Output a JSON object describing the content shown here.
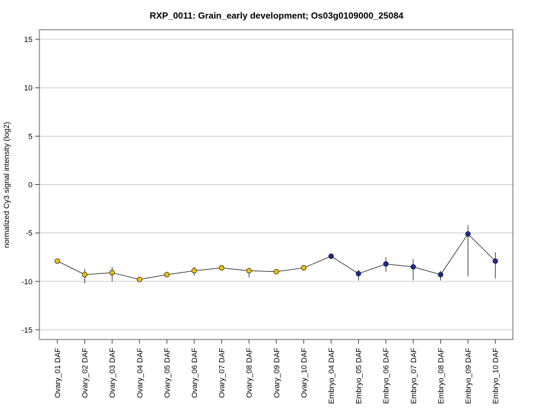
{
  "chart_data": {
    "type": "line",
    "title": "RXP_0011: Grain_early development; Os03g0109000_25084",
    "xlabel": "",
    "ylabel": "normalized Cy3 signal intensity (log2)",
    "ylim": [
      -16,
      16
    ],
    "yticks": [
      -15,
      -10,
      -5,
      0,
      5,
      10,
      15
    ],
    "grid": true,
    "categories": [
      "Ovary_01 DAF",
      "Ovary_02 DAF",
      "Ovary_03 DAF",
      "Ovary_04 DAF",
      "Ovary_05 DAF",
      "Ovary_06 DAF",
      "Ovary_07 DAF",
      "Ovary_08 DAF",
      "Ovary_09 DAF",
      "Ovary_10 DAF",
      "Embryo_04 DAF",
      "Embryo_05 DAF",
      "Embryo_06 DAF",
      "Embryo_07 DAF",
      "Embryo_08 DAF",
      "Embryo_09 DAF",
      "Embryo_10 DAF"
    ],
    "series": [
      {
        "values": [
          -7.9,
          -9.3,
          -9.1,
          -9.8,
          -9.3,
          -8.9,
          -8.6,
          -8.9,
          -9.0,
          -8.6,
          -7.4,
          -9.2,
          -8.2,
          -8.5,
          -9.3,
          -5.1,
          -7.9
        ],
        "error_low": [
          -8.1,
          -10.2,
          -10.0,
          -10.0,
          -9.5,
          -9.4,
          -8.8,
          -9.6,
          -9.2,
          -8.8,
          -7.5,
          -9.9,
          -9.0,
          -9.9,
          -9.9,
          -9.5,
          -9.7
        ],
        "error_high": [
          -7.7,
          -8.7,
          -8.5,
          -9.7,
          -9.2,
          -8.5,
          -8.4,
          -8.6,
          -8.9,
          -8.5,
          -7.3,
          -8.8,
          -7.5,
          -7.7,
          -8.9,
          -4.2,
          -7.0
        ],
        "marker_colors": [
          "#f2c200",
          "#f2c200",
          "#f2c200",
          "#f2c200",
          "#f2c200",
          "#f2c200",
          "#f2c200",
          "#f2c200",
          "#f2c200",
          "#f2c200",
          "#1a2a99",
          "#1a2a99",
          "#1a2a99",
          "#1a2a99",
          "#1a2a99",
          "#1a2a99",
          "#1a2a99"
        ]
      }
    ],
    "colors": {
      "ovary": "#f2c200",
      "embryo": "#1a2a99",
      "line": "#333333",
      "grid": "#c8c8c8"
    }
  }
}
